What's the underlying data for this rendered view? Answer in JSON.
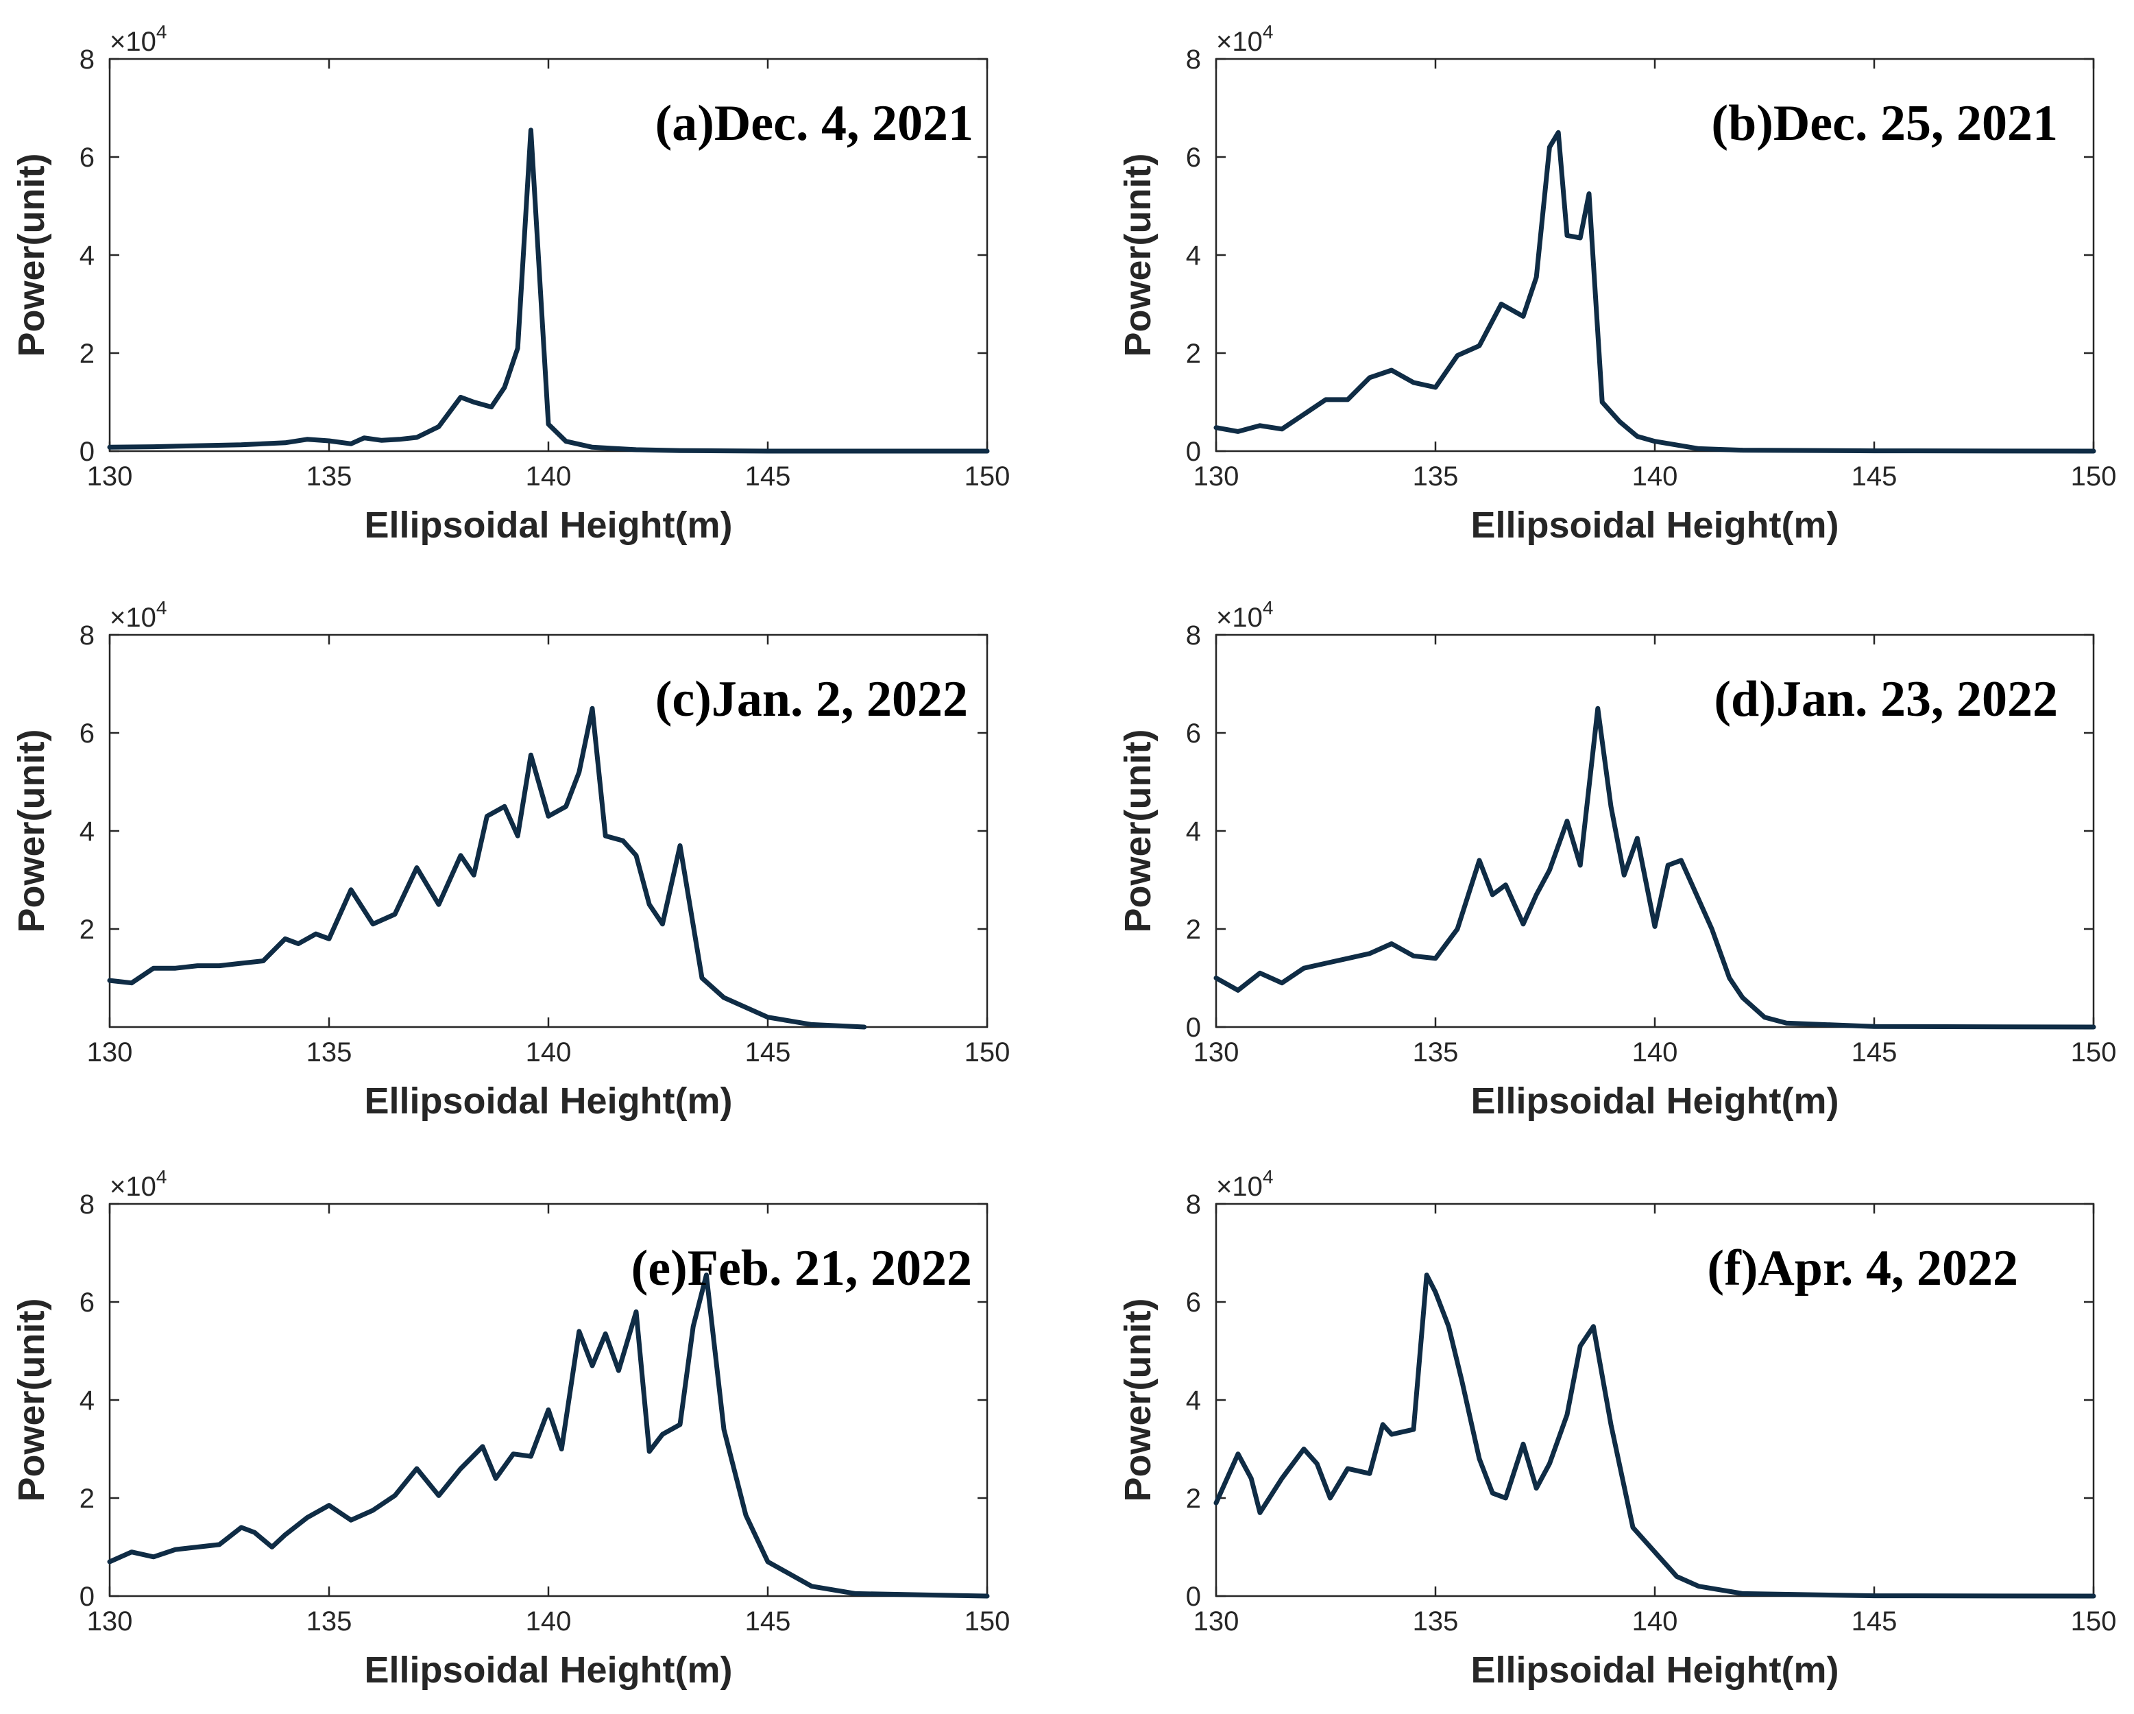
{
  "colors": {
    "line": "#0f2c45",
    "axis": "#262626",
    "background": "#ffffff"
  },
  "chart_data": [
    {
      "type": "line",
      "title": "(a)Dec. 4, 2021",
      "xlabel": "Ellipsoidal Height(m)",
      "ylabel": "Power(unit)",
      "xlim": [
        130,
        150
      ],
      "ylim": [
        0,
        80000
      ],
      "xticks": [
        "130",
        "135",
        "140",
        "145",
        "150"
      ],
      "yticks": [
        "0",
        "2",
        "4",
        "6",
        "8"
      ],
      "exponent_base": "×10",
      "exponent_power": "4",
      "series": [
        {
          "name": "(a)Dec. 4, 2021",
          "x": [
            130,
            131,
            132,
            133,
            134,
            134.5,
            135,
            135.5,
            135.8,
            136.2,
            136.6,
            137,
            137.5,
            138,
            138.3,
            138.7,
            139,
            139.3,
            139.6,
            140,
            140.4,
            141,
            142,
            143,
            145,
            150
          ],
          "y": [
            800,
            900,
            1100,
            1300,
            1700,
            2400,
            2100,
            1500,
            2700,
            2200,
            2400,
            2800,
            5000,
            11000,
            10000,
            9000,
            13000,
            21000,
            65500,
            5500,
            2000,
            800,
            300,
            100,
            0,
            0
          ]
        }
      ]
    },
    {
      "type": "line",
      "title": "(b)Dec. 25, 2021",
      "xlabel": "Ellipsoidal Height(m)",
      "ylabel": "Power(unit)",
      "xlim": [
        130,
        150
      ],
      "ylim": [
        0,
        80000
      ],
      "xticks": [
        "130",
        "135",
        "140",
        "145",
        "150"
      ],
      "yticks": [
        "0",
        "2",
        "4",
        "6",
        "8"
      ],
      "exponent_base": "×10",
      "exponent_power": "4",
      "series": [
        {
          "name": "(b)Dec. 25, 2021",
          "x": [
            130,
            130.5,
            131,
            131.5,
            132,
            132.5,
            133,
            133.5,
            134,
            134.5,
            135,
            135.5,
            136,
            136.5,
            137,
            137.3,
            137.6,
            137.8,
            138,
            138.3,
            138.5,
            138.8,
            139.2,
            139.6,
            140,
            141,
            142,
            145,
            150
          ],
          "y": [
            4800,
            4000,
            5200,
            4500,
            7500,
            10500,
            10500,
            15000,
            16500,
            14000,
            13000,
            19500,
            21500,
            30000,
            27500,
            35500,
            62000,
            65000,
            44000,
            43500,
            52500,
            10000,
            6000,
            3000,
            2000,
            500,
            200,
            50,
            0
          ]
        }
      ]
    },
    {
      "type": "line",
      "title": "(c)Jan. 2, 2022",
      "xlabel": "Ellipsoidal Height(m)",
      "ylabel": "Power(unit)",
      "xlim": [
        130,
        150
      ],
      "ylim": [
        0,
        80000
      ],
      "xticks": [
        "130",
        "135",
        "140",
        "145",
        "150"
      ],
      "yticks": [
        "2",
        "4",
        "6",
        "8"
      ],
      "exponent_base": "×10",
      "exponent_power": "4",
      "series": [
        {
          "name": "(c)Jan. 2, 2022",
          "x": [
            130,
            130.5,
            131,
            131.5,
            132,
            132.5,
            133,
            133.5,
            134,
            134.3,
            134.7,
            135,
            135.5,
            136,
            136.5,
            137,
            137.5,
            138,
            138.3,
            138.6,
            139,
            139.3,
            139.6,
            140,
            140.4,
            140.7,
            141,
            141.3,
            141.7,
            142,
            142.3,
            142.6,
            143,
            143.5,
            144,
            145,
            146,
            147.2
          ],
          "y": [
            9500,
            9000,
            12000,
            12000,
            12500,
            12500,
            13000,
            13500,
            18000,
            17000,
            19000,
            18000,
            28000,
            21000,
            23000,
            32500,
            25000,
            35000,
            31000,
            43000,
            45000,
            39000,
            55500,
            43000,
            45000,
            52000,
            65000,
            39000,
            38000,
            35000,
            25000,
            21000,
            37000,
            10000,
            6000,
            2000,
            500,
            0
          ]
        }
      ]
    },
    {
      "type": "line",
      "title": "(d)Jan. 23, 2022",
      "xlabel": "Ellipsoidal Height(m)",
      "ylabel": "Power(unit)",
      "xlim": [
        130,
        150
      ],
      "ylim": [
        0,
        80000
      ],
      "xticks": [
        "130",
        "135",
        "140",
        "145",
        "150"
      ],
      "yticks": [
        "0",
        "2",
        "4",
        "6",
        "8"
      ],
      "exponent_base": "×10",
      "exponent_power": "4",
      "series": [
        {
          "name": "(d)Jan. 23, 2022",
          "x": [
            130,
            130.5,
            131,
            131.5,
            132,
            132.5,
            133,
            133.5,
            134,
            134.5,
            135,
            135.5,
            136,
            136.3,
            136.6,
            137,
            137.3,
            137.6,
            138,
            138.3,
            138.7,
            139,
            139.3,
            139.6,
            140,
            140.3,
            140.6,
            141,
            141.3,
            141.7,
            142,
            142.5,
            143,
            145,
            150
          ],
          "y": [
            10000,
            7500,
            11000,
            9000,
            12000,
            13000,
            14000,
            15000,
            17000,
            14500,
            14000,
            20000,
            34000,
            27000,
            29000,
            21000,
            27000,
            32000,
            42000,
            33000,
            65000,
            45000,
            31000,
            38500,
            20500,
            33000,
            34000,
            26000,
            20000,
            10000,
            6000,
            2000,
            800,
            100,
            0
          ]
        }
      ]
    },
    {
      "type": "line",
      "title": "(e)Feb. 21, 2022",
      "xlabel": "Ellipsoidal Height(m)",
      "ylabel": "Power(unit)",
      "xlim": [
        130,
        150
      ],
      "ylim": [
        0,
        80000
      ],
      "xticks": [
        "130",
        "135",
        "140",
        "145",
        "150"
      ],
      "yticks": [
        "0",
        "2",
        "4",
        "6",
        "8"
      ],
      "exponent_base": "×10",
      "exponent_power": "4",
      "series": [
        {
          "name": "(e)Feb. 21, 2022",
          "x": [
            130,
            130.5,
            131,
            131.5,
            132,
            132.5,
            133,
            133.3,
            133.7,
            134,
            134.5,
            135,
            135.5,
            136,
            136.5,
            137,
            137.5,
            138,
            138.5,
            138.8,
            139.2,
            139.6,
            140,
            140.3,
            140.7,
            141,
            141.3,
            141.6,
            142,
            142.3,
            142.6,
            143,
            143.3,
            143.6,
            144,
            144.5,
            145,
            146,
            147,
            150
          ],
          "y": [
            7000,
            9000,
            8000,
            9500,
            10000,
            10500,
            14000,
            13000,
            10000,
            12500,
            16000,
            18500,
            15500,
            17500,
            20500,
            26000,
            20500,
            26000,
            30500,
            24000,
            29000,
            28500,
            38000,
            30000,
            54000,
            47000,
            53500,
            46000,
            58000,
            29500,
            33000,
            35000,
            55000,
            65500,
            34000,
            16500,
            7000,
            2000,
            500,
            0
          ]
        }
      ]
    },
    {
      "type": "line",
      "title": "(f)Apr. 4, 2022",
      "xlabel": "Ellipsoidal Height(m)",
      "ylabel": "Power(unit)",
      "xlim": [
        130,
        150
      ],
      "ylim": [
        0,
        80000
      ],
      "xticks": [
        "130",
        "135",
        "140",
        "145",
        "150"
      ],
      "yticks": [
        "0",
        "2",
        "4",
        "6",
        "8"
      ],
      "exponent_base": "×10",
      "exponent_power": "4",
      "series": [
        {
          "name": "(f)Apr. 4, 2022",
          "x": [
            130,
            130.5,
            130.8,
            131,
            131.5,
            132,
            132.3,
            132.6,
            133,
            133.5,
            133.8,
            134,
            134.5,
            134.8,
            135,
            135.3,
            135.6,
            136,
            136.3,
            136.6,
            137,
            137.3,
            137.6,
            138,
            138.3,
            138.6,
            139,
            139.5,
            140,
            140.5,
            141,
            142,
            145,
            150
          ],
          "y": [
            19000,
            29000,
            24000,
            17000,
            24000,
            30000,
            27000,
            20000,
            26000,
            25000,
            35000,
            33000,
            34000,
            65500,
            62000,
            55000,
            44000,
            28000,
            21000,
            20000,
            31000,
            22000,
            27000,
            37000,
            51000,
            55000,
            35000,
            14000,
            9000,
            4000,
            2000,
            500,
            50,
            0
          ]
        }
      ]
    }
  ]
}
